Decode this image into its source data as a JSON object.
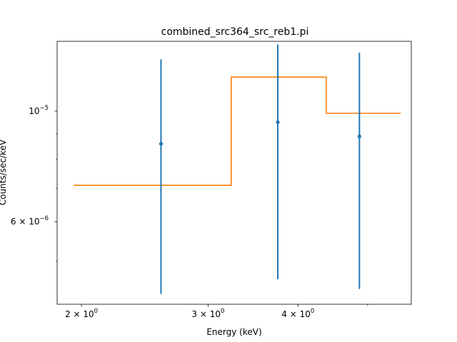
{
  "chart_data": {
    "type": "scatter",
    "title": "combined_src364_src_reb1.pi",
    "xlabel": "Energy (keV)",
    "ylabel": "Counts/sec/keV",
    "xscale": "log",
    "yscale": "log",
    "xlim": [
      1.85,
      5.75
    ],
    "ylim": [
      4.1e-06,
      1.38e-05
    ],
    "x_ticks": [
      {
        "value": 2,
        "base": "2 × 10",
        "exp": "0"
      },
      {
        "value": 3,
        "base": "3 × 10",
        "exp": "0"
      },
      {
        "value": 4,
        "base": "4 × 10",
        "exp": "0"
      }
    ],
    "x_minor_ticks": [
      5
    ],
    "y_ticks": [
      {
        "value": 1e-05,
        "base": "10",
        "exp": "−5"
      },
      {
        "value": 6e-06,
        "base": "6 × 10",
        "exp": "−6"
      }
    ],
    "y_minor_ticks": [
      5e-06,
      7e-06,
      8e-06,
      9e-06
    ],
    "series": [
      {
        "kind": "errorbar",
        "color": "#1f77b4",
        "points": [
          {
            "x": 2.58,
            "y": 8.6e-06,
            "ylow": 4.3e-06,
            "yhigh": 1.27e-05
          },
          {
            "x": 3.75,
            "y": 9.5e-06,
            "ylow": 4.6e-06,
            "yhigh": 1.36e-05
          },
          {
            "x": 4.87,
            "y": 8.9e-06,
            "ylow": 4.4e-06,
            "yhigh": 1.31e-05
          }
        ]
      },
      {
        "kind": "step",
        "color": "#ff7f0e",
        "segments": [
          {
            "x0": 1.95,
            "x1": 3.23,
            "y": 7.1e-06
          },
          {
            "x0": 3.23,
            "x1": 4.38,
            "y": 1.17e-05
          },
          {
            "x0": 4.38,
            "x1": 5.56,
            "y": 9.9e-06
          }
        ]
      }
    ]
  }
}
